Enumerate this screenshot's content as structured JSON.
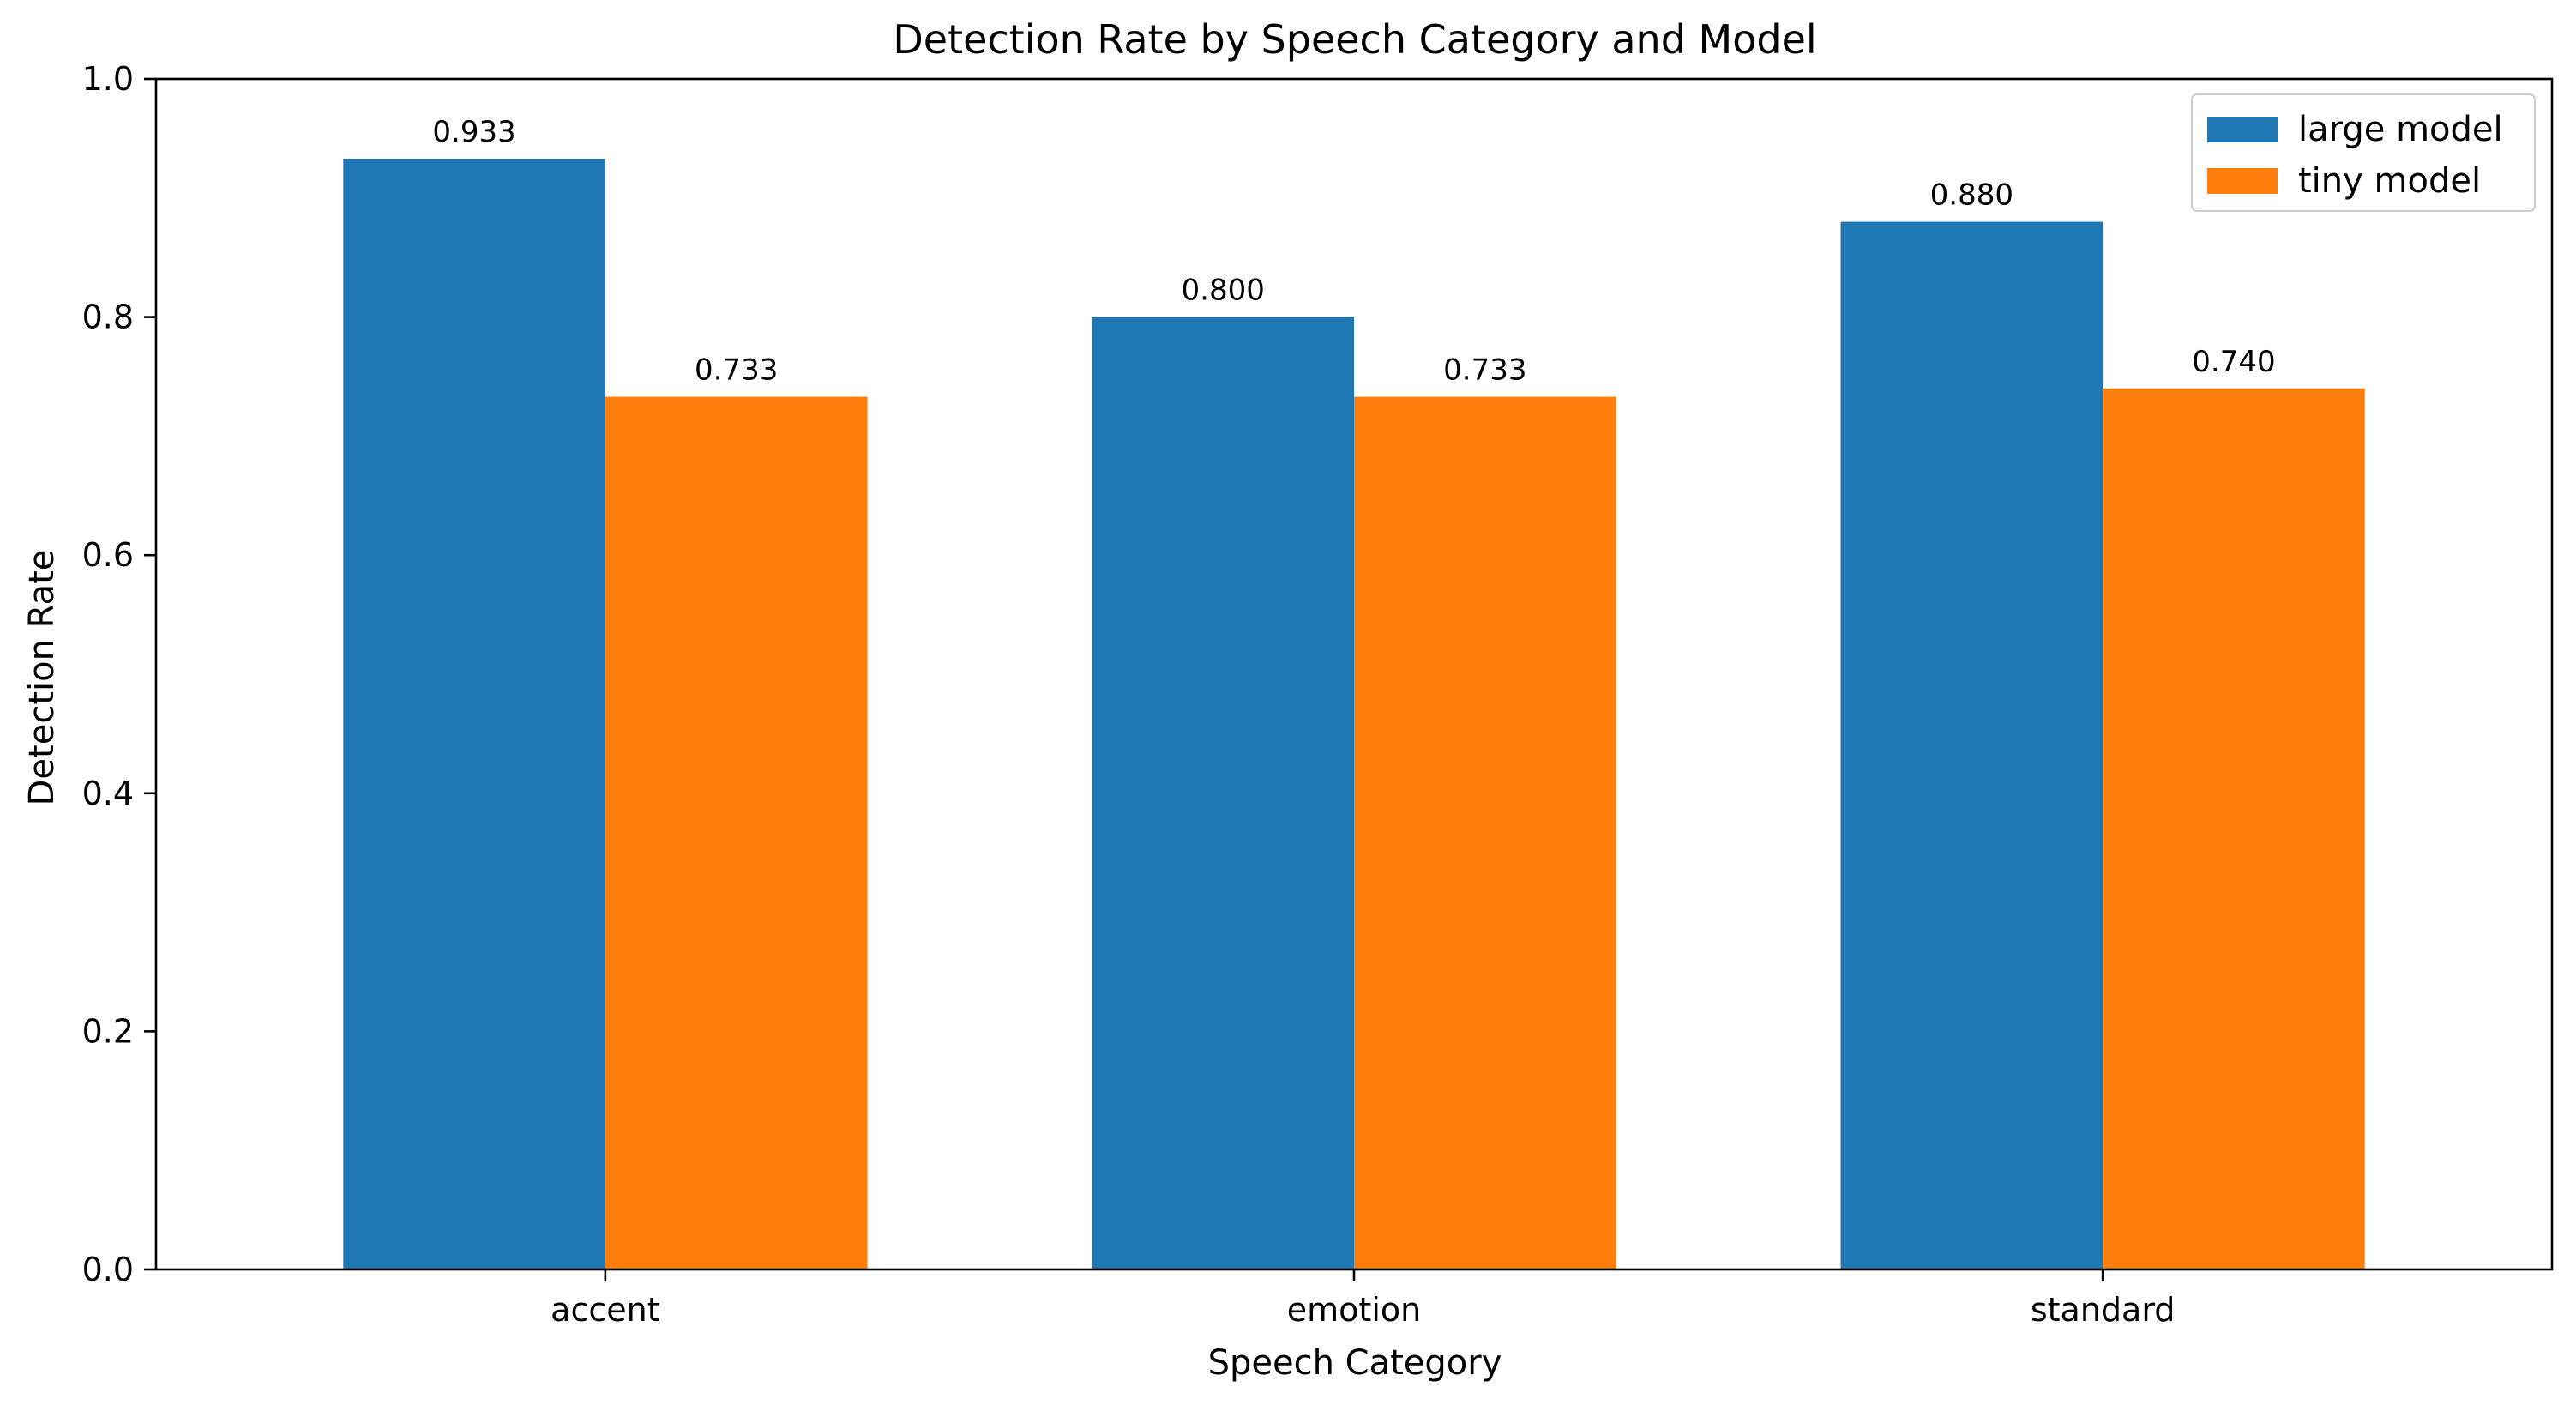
{
  "chart_data": {
    "type": "bar",
    "title": "Detection Rate by Speech Category and Model",
    "xlabel": "Speech Category",
    "ylabel": "Detection Rate",
    "categories": [
      "accent",
      "emotion",
      "standard"
    ],
    "series": [
      {
        "name": "large model",
        "color": "#1f77b4",
        "values": [
          0.933,
          0.8,
          0.88
        ],
        "labels": [
          "0.933",
          "0.800",
          "0.880"
        ]
      },
      {
        "name": "tiny model",
        "color": "#ff7f0e",
        "values": [
          0.733,
          0.733,
          0.74
        ],
        "labels": [
          "0.733",
          "0.733",
          "0.740"
        ]
      }
    ],
    "ylim": [
      0,
      1.0
    ],
    "yticks": [
      0.0,
      0.2,
      0.4,
      0.6,
      0.8,
      1.0
    ],
    "ytick_labels": [
      "0.0",
      "0.2",
      "0.4",
      "0.6",
      "0.8",
      "1.0"
    ],
    "grid": false,
    "legend_position": "top-right"
  }
}
